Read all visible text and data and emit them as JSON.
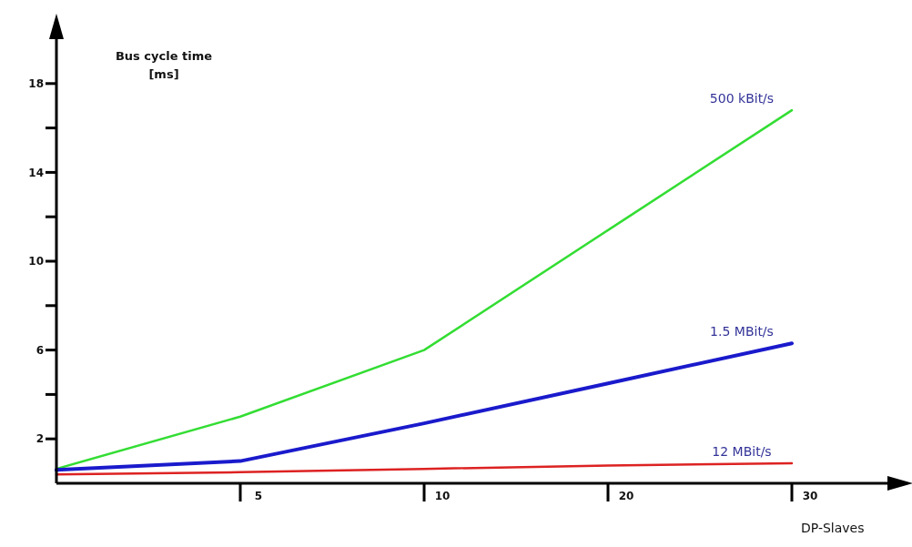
{
  "chart_data": {
    "type": "line",
    "ylabel": "Bus cycle time [ms]",
    "xlabel": "DP-Slaves",
    "categories": [
      null,
      "5",
      "10",
      "20",
      "30"
    ],
    "series": [
      {
        "name": "500 kBit/s",
        "color": "#33dd33",
        "values": [
          0.65,
          3.0,
          6.0,
          11.4,
          16.8
        ]
      },
      {
        "name": "1.5 MBit/s",
        "color": "#1a1acc",
        "values": [
          0.6,
          1.0,
          2.7,
          4.5,
          6.3
        ]
      },
      {
        "name": "12 MBit/s",
        "color": "#dd2222",
        "values": [
          0.4,
          0.5,
          0.65,
          0.8,
          0.9
        ]
      }
    ],
    "ylim": [
      0,
      20
    ],
    "yticks": [
      {
        "value": 2,
        "label": "2"
      },
      {
        "value": 4,
        "label": null
      },
      {
        "value": 6,
        "label": "6"
      },
      {
        "value": 8,
        "label": null
      },
      {
        "value": 10,
        "label": "10"
      },
      {
        "value": 12,
        "label": null
      },
      {
        "value": 14,
        "label": "14"
      },
      {
        "value": 16,
        "label": null
      },
      {
        "value": 18,
        "label": "18"
      }
    ],
    "grid": false,
    "legend": false,
    "marker": "none",
    "line_style": "solid"
  }
}
